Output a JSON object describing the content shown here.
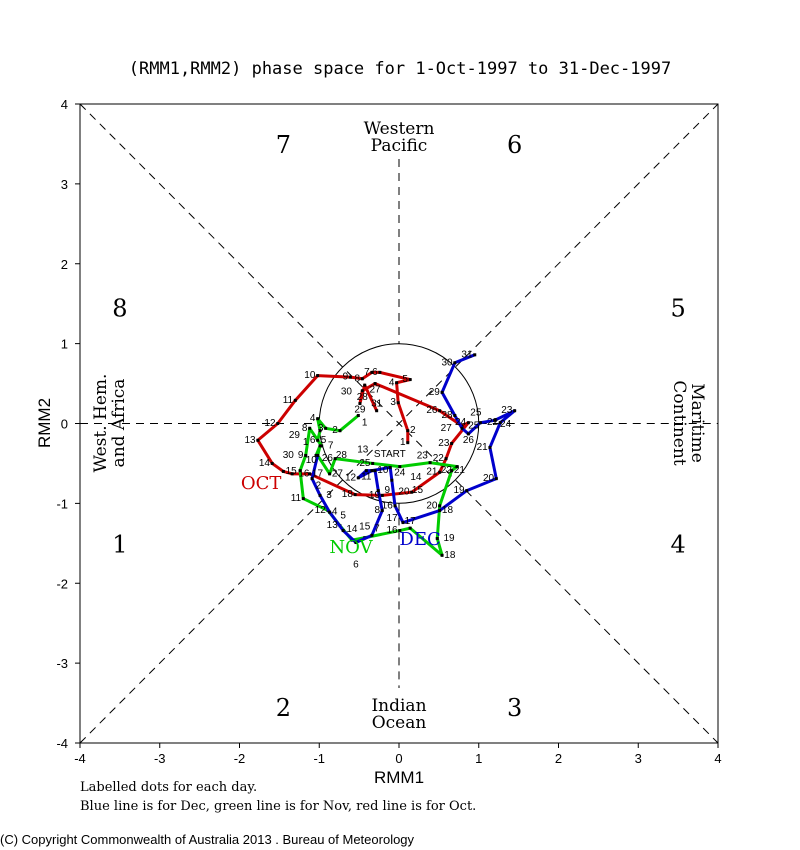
{
  "chart_data": {
    "type": "line",
    "title": "(RMM1,RMM2) phase space for  1-Oct-1997 to 31-Dec-1997",
    "xlabel": "RMM1",
    "ylabel": "RMM2",
    "xlim": [
      -4,
      4
    ],
    "ylim": [
      -4,
      4
    ],
    "xticks": [
      "-4",
      "-3",
      "-2",
      "-1",
      "0",
      "1",
      "2",
      "3",
      "4"
    ],
    "yticks": [
      "-4",
      "-3",
      "-2",
      "-1",
      "0",
      "1",
      "2",
      "3",
      "4"
    ],
    "unit_circle_radius": 1,
    "phases": [
      {
        "label": "1",
        "x": -3.5,
        "y": -1.5
      },
      {
        "label": "2",
        "x": -1.45,
        "y": -3.55
      },
      {
        "label": "3",
        "x": 1.45,
        "y": -3.55
      },
      {
        "label": "4",
        "x": 3.5,
        "y": -1.5
      },
      {
        "label": "5",
        "x": 3.5,
        "y": 1.45
      },
      {
        "label": "6",
        "x": 1.45,
        "y": 3.5
      },
      {
        "label": "7",
        "x": -1.45,
        "y": 3.5
      },
      {
        "label": "8",
        "x": -3.5,
        "y": 1.45
      }
    ],
    "regions": {
      "top": [
        "Western",
        "Pacific"
      ],
      "bottom": [
        "Indian",
        "Ocean"
      ],
      "left": [
        "West. Hem.",
        "and Africa"
      ],
      "right": [
        "Maritime",
        "Continent"
      ]
    },
    "start_label": "START",
    "series": [
      {
        "name": "Oct",
        "month_label": "OCT",
        "color": "#cc0000",
        "label_at": [
          -1.45,
          -0.75
        ],
        "x": [
          0.11,
          0.11,
          -0.01,
          -0.03,
          0.14,
          -0.24,
          -0.34,
          -0.46,
          -0.61,
          -1.02,
          -1.3,
          -1.52,
          -1.77,
          -1.59,
          -1.45,
          -1.34,
          -1.12,
          -0.55,
          -0.21,
          0.16,
          0.51,
          0.59,
          0.66,
          0.87,
          0.79,
          0.51,
          -0.3,
          -0.46,
          -0.49,
          -0.43,
          -0.28
        ],
        "y": [
          -0.24,
          -0.09,
          0.26,
          0.51,
          0.55,
          0.64,
          0.64,
          0.56,
          0.58,
          0.6,
          0.29,
          0.0,
          -0.21,
          -0.5,
          -0.6,
          -0.63,
          -0.63,
          -0.89,
          -0.9,
          -0.86,
          -0.61,
          -0.44,
          -0.25,
          0.01,
          -0.03,
          0.16,
          0.5,
          0.41,
          0.25,
          0.48,
          0.16
        ]
      },
      {
        "name": "Nov",
        "month_label": "NOV",
        "color": "#00cc00",
        "label_at": [
          -0.3,
          -1.55
        ],
        "x": [
          -0.51,
          -0.74,
          -0.92,
          -1.02,
          -0.99,
          -1.02,
          -0.97,
          -1.12,
          -1.17,
          -1.24,
          -1.2,
          -0.89,
          -0.74,
          -0.59,
          -0.43,
          0.01,
          0.14,
          0.54,
          0.48,
          0.51,
          0.66,
          0.73,
          0.39,
          0.01,
          -0.33,
          -0.8,
          -0.87,
          -1.02,
          -0.99,
          -1.04
        ],
        "y": [
          0.1,
          -0.09,
          -0.06,
          0.06,
          -0.09,
          -0.21,
          -0.28,
          -0.06,
          -0.4,
          -0.59,
          -0.94,
          -1.09,
          -1.28,
          -1.46,
          -1.43,
          -1.34,
          -1.31,
          -1.65,
          -1.44,
          -1.03,
          -0.59,
          -0.54,
          -0.49,
          -0.54,
          -0.5,
          -0.44,
          -0.63,
          -0.4,
          -0.28,
          -0.4
        ]
      },
      {
        "name": "Dec",
        "month_label": "DEC",
        "color": "#0000cc",
        "label_at": [
          -0.02,
          -1.45
        ],
        "x": [
          -1.02,
          -1.09,
          -0.99,
          -0.87,
          -0.7,
          -0.54,
          -0.34,
          -0.21,
          -0.26,
          -0.3,
          -0.41,
          -0.51,
          -0.34,
          -0.11,
          -0.09,
          -0.05,
          0.05,
          0.51,
          0.85,
          1.22,
          1.14,
          1.27,
          1.45,
          1.2,
          1.02,
          0.87,
          0.79,
          0.7,
          0.54,
          0.7,
          0.95
        ],
        "y": [
          -0.4,
          -0.69,
          -0.9,
          -1.11,
          -1.34,
          -1.49,
          -1.4,
          -1.09,
          -0.84,
          -0.59,
          -0.59,
          -0.68,
          -0.59,
          -0.55,
          -0.71,
          -1.03,
          -1.24,
          -1.09,
          -0.84,
          -0.69,
          -0.3,
          0.01,
          0.16,
          0.04,
          0.01,
          -0.13,
          -0.06,
          0.1,
          0.39,
          0.76,
          0.86
        ]
      }
    ],
    "grid": false,
    "legend": "none"
  },
  "footer": {
    "note1": "Labelled dots for each day.",
    "note2": "Blue line is for Dec, green line is for Nov, red line is for Oct.",
    "copyright": "(C) Copyright Commonwealth of Australia 2013 . Bureau of Meteorology"
  }
}
